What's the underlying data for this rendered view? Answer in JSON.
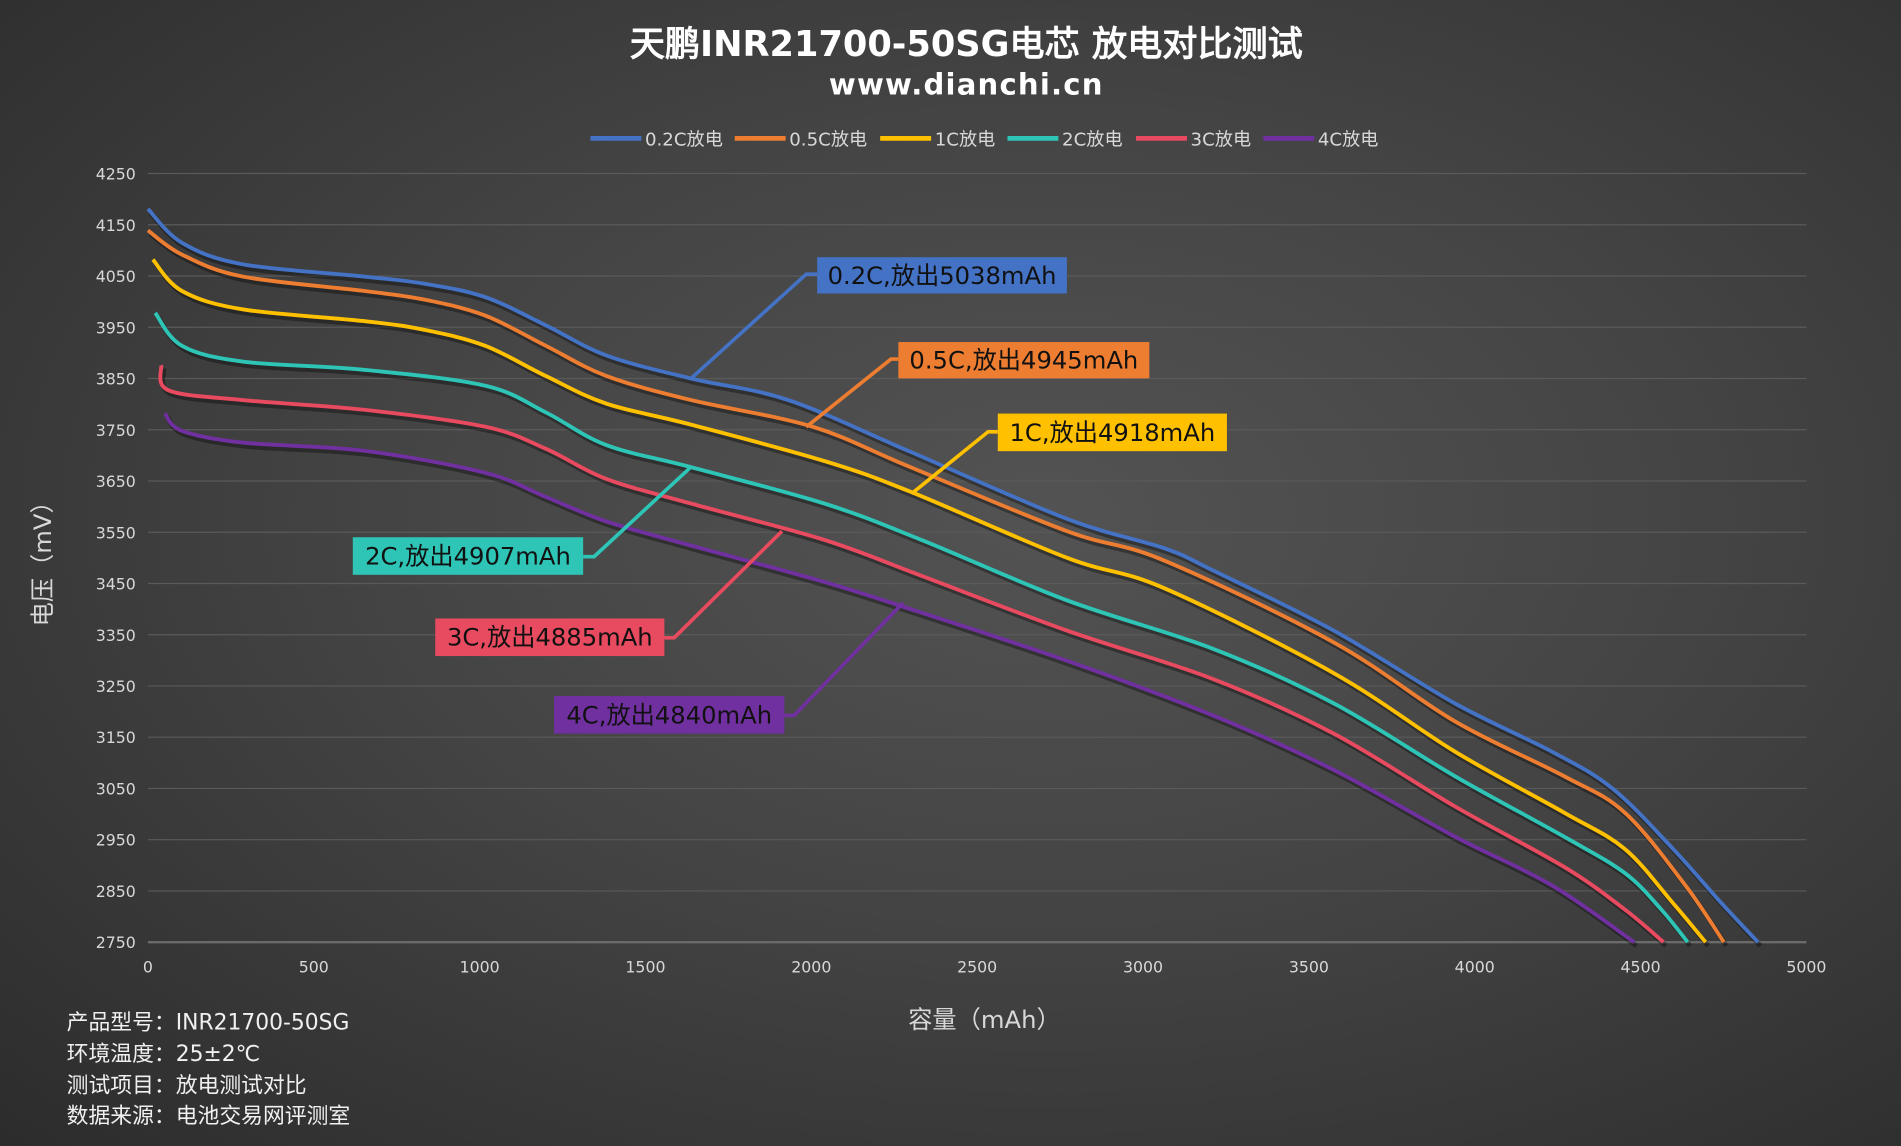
{
  "chart_data": {
    "type": "line",
    "title": "天鹏INR21700-50SG电芯 放电对比测试",
    "subtitle": "www.dianchi.cn",
    "xlabel": "容量（mAh）",
    "ylabel": "电压（mV）",
    "xlim": [
      0,
      5000
    ],
    "ylim": [
      2750,
      4250
    ],
    "xticks": [
      "0",
      "500",
      "1000",
      "1500",
      "2000",
      "2500",
      "3000",
      "3500",
      "4000",
      "4500",
      "5000"
    ],
    "yticks": [
      "4250",
      "4150",
      "4050",
      "3950",
      "3850",
      "3750",
      "3650",
      "3550",
      "3450",
      "3350",
      "3250",
      "3150",
      "3050",
      "2950",
      "2850",
      "2750"
    ],
    "grid": true,
    "legend_position": "top",
    "series": [
      {
        "name": "0.2C放电",
        "color": "#4472c4",
        "annotation": "0.2C,放出5038mAh",
        "points": [
          [
            0,
            4181
          ],
          [
            102,
            4115
          ],
          [
            285,
            4073
          ],
          [
            651,
            4049
          ],
          [
            833,
            4035
          ],
          [
            1016,
            4009
          ],
          [
            1199,
            3954
          ],
          [
            1382,
            3895
          ],
          [
            1637,
            3850
          ],
          [
            1930,
            3808
          ],
          [
            2295,
            3708
          ],
          [
            2771,
            3576
          ],
          [
            3063,
            3519
          ],
          [
            3209,
            3476
          ],
          [
            3575,
            3358
          ],
          [
            3940,
            3216
          ],
          [
            4232,
            3122
          ],
          [
            4415,
            3050
          ],
          [
            4598,
            2932
          ],
          [
            4744,
            2826
          ],
          [
            4854,
            2750
          ]
        ]
      },
      {
        "name": "0.5C放电",
        "color": "#ed7d31",
        "annotation": "0.5C,放出4945mAh",
        "points": [
          [
            0,
            4139
          ],
          [
            102,
            4092
          ],
          [
            285,
            4049
          ],
          [
            651,
            4021
          ],
          [
            833,
            4004
          ],
          [
            1016,
            3973
          ],
          [
            1199,
            3914
          ],
          [
            1382,
            3855
          ],
          [
            1637,
            3808
          ],
          [
            2003,
            3756
          ],
          [
            2295,
            3678
          ],
          [
            2771,
            3552
          ],
          [
            3063,
            3495
          ],
          [
            3575,
            3335
          ],
          [
            3940,
            3181
          ],
          [
            4269,
            3074
          ],
          [
            4452,
            3003
          ],
          [
            4635,
            2861
          ],
          [
            4751,
            2750
          ]
        ]
      },
      {
        "name": "1C放电",
        "color": "#ffc000",
        "annotation": "1C,放出4918mAh",
        "points": [
          [
            15,
            4082
          ],
          [
            102,
            4021
          ],
          [
            285,
            3985
          ],
          [
            651,
            3962
          ],
          [
            833,
            3945
          ],
          [
            1016,
            3914
          ],
          [
            1199,
            3855
          ],
          [
            1382,
            3801
          ],
          [
            1637,
            3760
          ],
          [
            2039,
            3689
          ],
          [
            2295,
            3630
          ],
          [
            2771,
            3500
          ],
          [
            3063,
            3441
          ],
          [
            3575,
            3275
          ],
          [
            3940,
            3122
          ],
          [
            4269,
            3003
          ],
          [
            4452,
            2932
          ],
          [
            4598,
            2826
          ],
          [
            4696,
            2750
          ]
        ]
      },
      {
        "name": "2C放电",
        "color": "#2ec4b6",
        "annotation": "2C,放出4907mAh",
        "points": [
          [
            22,
            3978
          ],
          [
            102,
            3914
          ],
          [
            285,
            3883
          ],
          [
            651,
            3867
          ],
          [
            1016,
            3836
          ],
          [
            1199,
            3784
          ],
          [
            1382,
            3720
          ],
          [
            1637,
            3677
          ],
          [
            2039,
            3606
          ],
          [
            2332,
            3535
          ],
          [
            2771,
            3417
          ],
          [
            3209,
            3323
          ],
          [
            3575,
            3216
          ],
          [
            3940,
            3074
          ],
          [
            4269,
            2956
          ],
          [
            4452,
            2885
          ],
          [
            4562,
            2814
          ],
          [
            4642,
            2750
          ]
        ]
      },
      {
        "name": "3C放电",
        "color": "#e84a5f",
        "annotation": "3C,放出4885mAh",
        "points": [
          [
            40,
            3876
          ],
          [
            62,
            3827
          ],
          [
            285,
            3808
          ],
          [
            651,
            3789
          ],
          [
            1016,
            3756
          ],
          [
            1199,
            3713
          ],
          [
            1382,
            3654
          ],
          [
            1637,
            3606
          ],
          [
            2039,
            3535
          ],
          [
            2332,
            3465
          ],
          [
            2771,
            3358
          ],
          [
            3209,
            3264
          ],
          [
            3575,
            3157
          ],
          [
            3940,
            3015
          ],
          [
            4269,
            2897
          ],
          [
            4452,
            2814
          ],
          [
            4569,
            2750
          ]
        ]
      },
      {
        "name": "4C放电",
        "color": "#7030a0",
        "annotation": "4C,放出4840mAh",
        "points": [
          [
            51,
            3782
          ],
          [
            102,
            3748
          ],
          [
            285,
            3725
          ],
          [
            651,
            3709
          ],
          [
            1016,
            3666
          ],
          [
            1199,
            3619
          ],
          [
            1382,
            3571
          ],
          [
            1637,
            3524
          ],
          [
            2039,
            3453
          ],
          [
            2332,
            3393
          ],
          [
            2771,
            3299
          ],
          [
            3209,
            3193
          ],
          [
            3575,
            3086
          ],
          [
            3940,
            2956
          ],
          [
            4232,
            2861
          ],
          [
            4481,
            2750
          ]
        ]
      }
    ]
  },
  "info": [
    {
      "label": "产品型号：",
      "value": "INR21700-50SG"
    },
    {
      "label": "环境温度：",
      "value": "25±2℃"
    },
    {
      "label": "测试项目：",
      "value": "放电测试对比"
    },
    {
      "label": "数据来源：",
      "value": "电池交易网评测室"
    }
  ]
}
